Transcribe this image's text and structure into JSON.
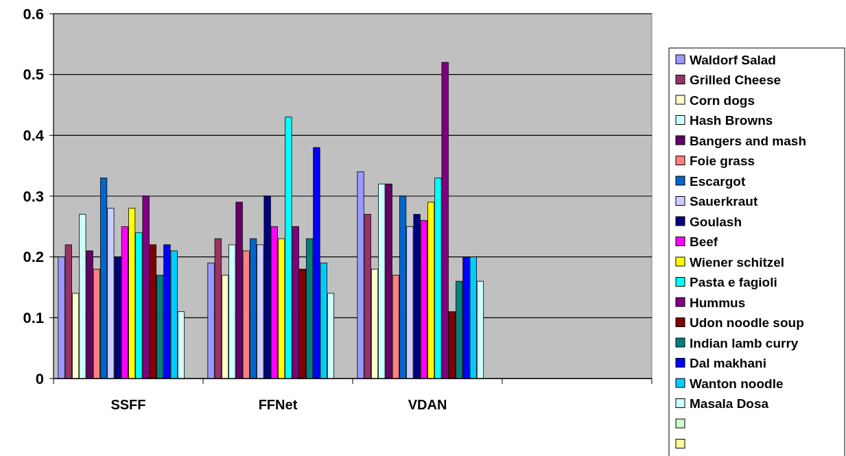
{
  "chart_data": {
    "type": "bar",
    "categories": [
      "SSFF",
      "FFNet",
      "VDAN",
      null
    ],
    "ylim": [
      0,
      0.6
    ],
    "yticks": [
      0,
      0.1,
      0.2,
      0.3,
      0.4,
      0.5,
      0.6
    ],
    "grid": "y",
    "legend": "right",
    "series": [
      {
        "name": "Waldorf Salad",
        "color": "#9999ff",
        "values": [
          0.2,
          0.19,
          0.34,
          null
        ]
      },
      {
        "name": "Grilled Cheese",
        "color": "#993366",
        "values": [
          0.22,
          0.23,
          0.27,
          null
        ]
      },
      {
        "name": "Corn dogs",
        "color": "#ffffcc",
        "values": [
          0.14,
          0.17,
          0.18,
          null
        ]
      },
      {
        "name": "Hash Browns",
        "color": "#ccffff",
        "values": [
          0.27,
          0.22,
          0.32,
          null
        ]
      },
      {
        "name": "Bangers and mash",
        "color": "#660066",
        "values": [
          0.21,
          0.29,
          0.32,
          null
        ]
      },
      {
        "name": "Foie grass",
        "color": "#ff8080",
        "values": [
          0.18,
          0.21,
          0.17,
          null
        ]
      },
      {
        "name": "Escargot",
        "color": "#0066cc",
        "values": [
          0.33,
          0.23,
          0.3,
          null
        ]
      },
      {
        "name": "Sauerkraut",
        "color": "#ccccff",
        "values": [
          0.28,
          0.22,
          0.25,
          null
        ]
      },
      {
        "name": "Goulash",
        "color": "#000080",
        "values": [
          0.2,
          0.3,
          0.27,
          null
        ]
      },
      {
        "name": "Beef",
        "color": "#ff00ff",
        "values": [
          0.25,
          0.25,
          0.26,
          null
        ]
      },
      {
        "name": "Wiener schitzel",
        "color": "#ffff00",
        "values": [
          0.28,
          0.23,
          0.29,
          null
        ]
      },
      {
        "name": "Pasta  e fagioli",
        "color": "#00ffff",
        "values": [
          0.24,
          0.43,
          0.33,
          null
        ]
      },
      {
        "name": "Hummus",
        "color": "#800080",
        "values": [
          0.3,
          0.25,
          0.52,
          null
        ]
      },
      {
        "name": "Udon noodle soup",
        "color": "#800000",
        "values": [
          0.22,
          0.18,
          0.11,
          null
        ]
      },
      {
        "name": "Indian lamb curry",
        "color": "#008080",
        "values": [
          0.17,
          0.23,
          0.16,
          null
        ]
      },
      {
        "name": "Dal makhani",
        "color": "#0000ff",
        "values": [
          0.22,
          0.38,
          0.2,
          null
        ]
      },
      {
        "name": "Wanton noodle",
        "color": "#00ccff",
        "values": [
          0.21,
          0.19,
          0.2,
          null
        ]
      },
      {
        "name": "Masala Dosa",
        "color": "#ccffff",
        "values": [
          0.11,
          0.14,
          0.16,
          null
        ]
      },
      {
        "color": "#ccffcc",
        "values": [
          null,
          null,
          null,
          null
        ]
      },
      {
        "color": "#ffff99",
        "values": [
          null,
          null,
          null,
          null
        ]
      }
    ]
  }
}
